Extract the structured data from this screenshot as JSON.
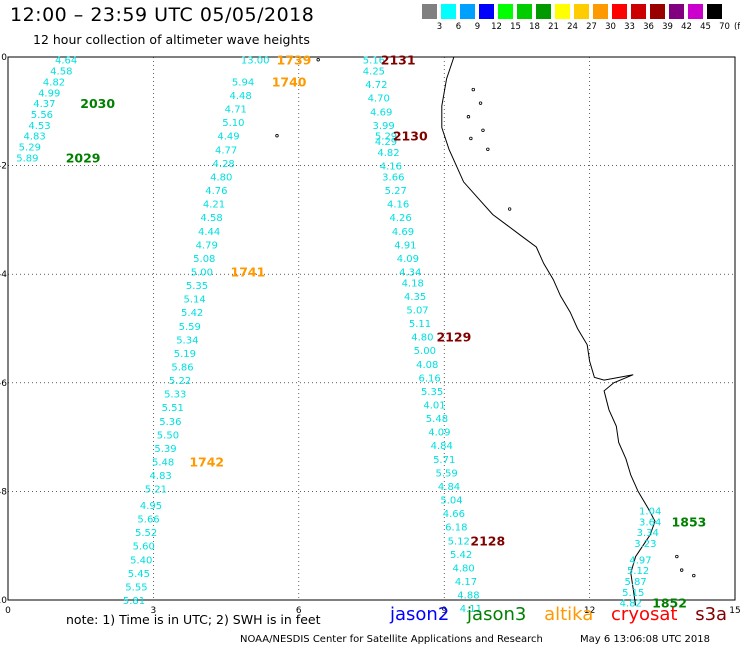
{
  "header": {
    "title": "12:00 – 23:59 UTC 05/05/2018",
    "subtitle": "12 hour collection of altimeter wave heights"
  },
  "color_scale": {
    "unit": "(ft)",
    "bins": [
      {
        "label": "3",
        "color": "#808080"
      },
      {
        "label": "6",
        "color": "#00ffff"
      },
      {
        "label": "9",
        "color": "#00a0ff"
      },
      {
        "label": "12",
        "color": "#0000ff"
      },
      {
        "label": "15",
        "color": "#00ff00"
      },
      {
        "label": "18",
        "color": "#00cc00"
      },
      {
        "label": "21",
        "color": "#009900"
      },
      {
        "label": "24",
        "color": "#ffff00"
      },
      {
        "label": "27",
        "color": "#ffcc00"
      },
      {
        "label": "30",
        "color": "#ff9900"
      },
      {
        "label": "33",
        "color": "#ff0000"
      },
      {
        "label": "36",
        "color": "#cc0000"
      },
      {
        "label": "39",
        "color": "#990000"
      },
      {
        "label": "42",
        "color": "#800080"
      },
      {
        "label": "45",
        "color": "#cc00cc"
      },
      {
        "label": "70",
        "color": "#000000"
      }
    ]
  },
  "axes": {
    "x_ticks": [
      "0",
      "3",
      "6",
      "9",
      "12",
      "15"
    ],
    "y_ticks": [
      "0",
      "-2",
      "-4",
      "-6",
      "-8",
      "-10"
    ],
    "x_range": [
      0,
      15
    ],
    "y_range": [
      -10,
      0
    ]
  },
  "satellites": {
    "jason2": {
      "name": "jason2",
      "color": "#0000ff"
    },
    "jason3": {
      "name": "jason3",
      "color": "#008000"
    },
    "altika": {
      "name": "altika",
      "color": "#ff9900"
    },
    "cryosat": {
      "name": "cryosat",
      "color": "#ff0000"
    },
    "s3a": {
      "name": "s3a",
      "color": "#800000"
    }
  },
  "tracks": [
    {
      "satellite": "jason3",
      "value_color": "#00e0e0",
      "points": [
        {
          "lon": 1.2,
          "lat": -0.05,
          "v": "4.64"
        },
        {
          "lon": 1.1,
          "lat": -0.25,
          "v": "4.58"
        },
        {
          "lon": 0.95,
          "lat": -0.45,
          "v": "4.82"
        },
        {
          "lon": 0.85,
          "lat": -0.65,
          "v": "4.99"
        },
        {
          "lon": 0.75,
          "lat": -0.85,
          "v": "4.37"
        },
        {
          "lon": 0.7,
          "lat": -1.05,
          "v": "5.56"
        },
        {
          "lon": 0.65,
          "lat": -1.25,
          "v": "4.53"
        },
        {
          "lon": 0.55,
          "lat": -1.45,
          "v": "4.83"
        },
        {
          "lon": 0.45,
          "lat": -1.65,
          "v": "5.29"
        },
        {
          "lon": 0.4,
          "lat": -1.85,
          "v": "5.89"
        }
      ],
      "passes": [
        {
          "label": "2030",
          "lon": 1.85,
          "lat": -0.85
        },
        {
          "label": "2029",
          "lon": 1.55,
          "lat": -1.85
        }
      ]
    },
    {
      "satellite": "altika",
      "value_color": "#00e0e0",
      "points": [
        {
          "lon": 5.1,
          "lat": -0.05,
          "v": "13.00"
        },
        {
          "lon": 4.85,
          "lat": -0.45,
          "v": "5.94"
        },
        {
          "lon": 4.8,
          "lat": -0.7,
          "v": "4.48"
        },
        {
          "lon": 4.7,
          "lat": -0.95,
          "v": "4.71"
        },
        {
          "lon": 4.65,
          "lat": -1.2,
          "v": "5.10"
        },
        {
          "lon": 4.55,
          "lat": -1.45,
          "v": "4.49"
        },
        {
          "lon": 4.5,
          "lat": -1.7,
          "v": "4.77"
        },
        {
          "lon": 4.45,
          "lat": -1.95,
          "v": "4.28"
        },
        {
          "lon": 4.4,
          "lat": -2.2,
          "v": "4.80"
        },
        {
          "lon": 4.3,
          "lat": -2.45,
          "v": "4.76"
        },
        {
          "lon": 4.25,
          "lat": -2.7,
          "v": "4.21"
        },
        {
          "lon": 4.2,
          "lat": -2.95,
          "v": "4.58"
        },
        {
          "lon": 4.15,
          "lat": -3.2,
          "v": "4.44"
        },
        {
          "lon": 4.1,
          "lat": -3.45,
          "v": "4.79"
        },
        {
          "lon": 4.05,
          "lat": -3.7,
          "v": "5.08"
        },
        {
          "lon": 4.0,
          "lat": -3.95,
          "v": "5.00"
        },
        {
          "lon": 3.9,
          "lat": -4.2,
          "v": "5.35"
        },
        {
          "lon": 3.85,
          "lat": -4.45,
          "v": "5.14"
        },
        {
          "lon": 3.8,
          "lat": -4.7,
          "v": "5.42"
        },
        {
          "lon": 3.75,
          "lat": -4.95,
          "v": "5.59"
        },
        {
          "lon": 3.7,
          "lat": -5.2,
          "v": "5.34"
        },
        {
          "lon": 3.65,
          "lat": -5.45,
          "v": "5.19"
        },
        {
          "lon": 3.6,
          "lat": -5.7,
          "v": "5.86"
        },
        {
          "lon": 3.55,
          "lat": -5.95,
          "v": "5.22"
        },
        {
          "lon": 3.45,
          "lat": -6.2,
          "v": "5.33"
        },
        {
          "lon": 3.4,
          "lat": -6.45,
          "v": "5.51"
        },
        {
          "lon": 3.35,
          "lat": -6.7,
          "v": "5.36"
        },
        {
          "lon": 3.3,
          "lat": -6.95,
          "v": "5.50"
        },
        {
          "lon": 3.25,
          "lat": -7.2,
          "v": "5.39"
        },
        {
          "lon": 3.2,
          "lat": -7.45,
          "v": "5.48"
        },
        {
          "lon": 3.15,
          "lat": -7.7,
          "v": "4.83"
        },
        {
          "lon": 3.05,
          "lat": -7.95,
          "v": "5.21"
        },
        {
          "lon": 2.95,
          "lat": -8.25,
          "v": "4.95"
        },
        {
          "lon": 2.9,
          "lat": -8.5,
          "v": "5.66"
        },
        {
          "lon": 2.85,
          "lat": -8.75,
          "v": "5.52"
        },
        {
          "lon": 2.8,
          "lat": -9.0,
          "v": "5.60"
        },
        {
          "lon": 2.75,
          "lat": -9.25,
          "v": "5.40"
        },
        {
          "lon": 2.7,
          "lat": -9.5,
          "v": "5.45"
        },
        {
          "lon": 2.65,
          "lat": -9.75,
          "v": "5.55"
        },
        {
          "lon": 2.6,
          "lat": -10.0,
          "v": "5.81"
        }
      ],
      "passes": [
        {
          "label": "1739",
          "lon": 5.9,
          "lat": -0.05
        },
        {
          "label": "1740",
          "lon": 5.8,
          "lat": -0.45
        },
        {
          "label": "1741",
          "lon": 4.95,
          "lat": -3.95
        },
        {
          "label": "1742",
          "lon": 4.1,
          "lat": -7.45
        }
      ]
    },
    {
      "satellite": "s3a",
      "value_color": "#00e0e0",
      "points": [
        {
          "lon": 7.55,
          "lat": -0.05,
          "v": "5.16"
        },
        {
          "lon": 7.55,
          "lat": -0.25,
          "v": "4.25"
        },
        {
          "lon": 7.6,
          "lat": -0.5,
          "v": "4.72"
        },
        {
          "lon": 7.65,
          "lat": -0.75,
          "v": "4.70"
        },
        {
          "lon": 7.7,
          "lat": -1.0,
          "v": "4.69"
        },
        {
          "lon": 7.75,
          "lat": -1.25,
          "v": "3.99"
        },
        {
          "lon": 7.8,
          "lat": -1.45,
          "v": "5.29"
        },
        {
          "lon": 7.8,
          "lat": -1.55,
          "v": "4.29"
        },
        {
          "lon": 7.85,
          "lat": -1.75,
          "v": "4.82"
        },
        {
          "lon": 7.9,
          "lat": -2.0,
          "v": "4.16"
        },
        {
          "lon": 7.95,
          "lat": -2.2,
          "v": "3.66"
        },
        {
          "lon": 8.0,
          "lat": -2.45,
          "v": "5.27"
        },
        {
          "lon": 8.05,
          "lat": -2.7,
          "v": "4.16"
        },
        {
          "lon": 8.1,
          "lat": -2.95,
          "v": "4.26"
        },
        {
          "lon": 8.15,
          "lat": -3.2,
          "v": "4.69"
        },
        {
          "lon": 8.2,
          "lat": -3.45,
          "v": "4.91"
        },
        {
          "lon": 8.25,
          "lat": -3.7,
          "v": "4.09"
        },
        {
          "lon": 8.3,
          "lat": -3.95,
          "v": "4.34"
        },
        {
          "lon": 8.35,
          "lat": -4.15,
          "v": "4.18"
        },
        {
          "lon": 8.4,
          "lat": -4.4,
          "v": "4.35"
        },
        {
          "lon": 8.45,
          "lat": -4.65,
          "v": "5.07"
        },
        {
          "lon": 8.5,
          "lat": -4.9,
          "v": "5.11"
        },
        {
          "lon": 8.55,
          "lat": -5.15,
          "v": "4.80"
        },
        {
          "lon": 8.6,
          "lat": -5.4,
          "v": "5.00"
        },
        {
          "lon": 8.65,
          "lat": -5.65,
          "v": "4.08"
        },
        {
          "lon": 8.7,
          "lat": -5.9,
          "v": "6.16"
        },
        {
          "lon": 8.75,
          "lat": -6.15,
          "v": "5.35"
        },
        {
          "lon": 8.8,
          "lat": -6.4,
          "v": "4.01"
        },
        {
          "lon": 8.85,
          "lat": -6.65,
          "v": "5.48"
        },
        {
          "lon": 8.9,
          "lat": -6.9,
          "v": "4.09"
        },
        {
          "lon": 8.95,
          "lat": -7.15,
          "v": "4.84"
        },
        {
          "lon": 9.0,
          "lat": -7.4,
          "v": "5.71"
        },
        {
          "lon": 9.05,
          "lat": -7.65,
          "v": "5.59"
        },
        {
          "lon": 9.1,
          "lat": -7.9,
          "v": "4.84"
        },
        {
          "lon": 9.15,
          "lat": -8.15,
          "v": "5.04"
        },
        {
          "lon": 9.2,
          "lat": -8.4,
          "v": "4.66"
        },
        {
          "lon": 9.25,
          "lat": -8.65,
          "v": "6.18"
        },
        {
          "lon": 9.3,
          "lat": -8.9,
          "v": "5.12"
        },
        {
          "lon": 9.35,
          "lat": -9.15,
          "v": "5.42"
        },
        {
          "lon": 9.4,
          "lat": -9.4,
          "v": "4.80"
        },
        {
          "lon": 9.45,
          "lat": -9.65,
          "v": "4.17"
        },
        {
          "lon": 9.5,
          "lat": -9.9,
          "v": "4.88"
        },
        {
          "lon": 9.55,
          "lat": -10.15,
          "v": "4.11"
        }
      ],
      "passes": [
        {
          "label": "2131",
          "lon": 8.05,
          "lat": -0.05
        },
        {
          "label": "2130",
          "lon": 8.3,
          "lat": -1.45
        },
        {
          "label": "2129",
          "lon": 9.2,
          "lat": -5.15
        },
        {
          "label": "2128",
          "lon": 9.9,
          "lat": -8.9
        }
      ]
    },
    {
      "satellite": "jason3",
      "value_color": "#00e0e0",
      "points": [
        {
          "lon": 13.25,
          "lat": -8.35,
          "v": "1.04"
        },
        {
          "lon": 13.25,
          "lat": -8.55,
          "v": "3.64"
        },
        {
          "lon": 13.2,
          "lat": -8.75,
          "v": "3.34"
        },
        {
          "lon": 13.15,
          "lat": -8.95,
          "v": "3.23"
        },
        {
          "lon": 13.05,
          "lat": -9.25,
          "v": "4.97"
        },
        {
          "lon": 13.0,
          "lat": -9.45,
          "v": "5.12"
        },
        {
          "lon": 12.95,
          "lat": -9.65,
          "v": "5.87"
        },
        {
          "lon": 12.9,
          "lat": -9.85,
          "v": "5.15"
        },
        {
          "lon": 12.85,
          "lat": -10.05,
          "v": "4.82"
        }
      ],
      "passes": [
        {
          "label": "1853",
          "lon": 14.05,
          "lat": -8.55
        },
        {
          "label": "1852",
          "lon": 13.65,
          "lat": -10.05
        }
      ]
    }
  ],
  "footer": {
    "note": "note: 1) Time is in UTC; 2) SWH is in feet",
    "credit": "NOAA/NESDIS Center for Satellite Applications and Research",
    "timestamp": "May  6 13:06:08 UTC 2018"
  }
}
